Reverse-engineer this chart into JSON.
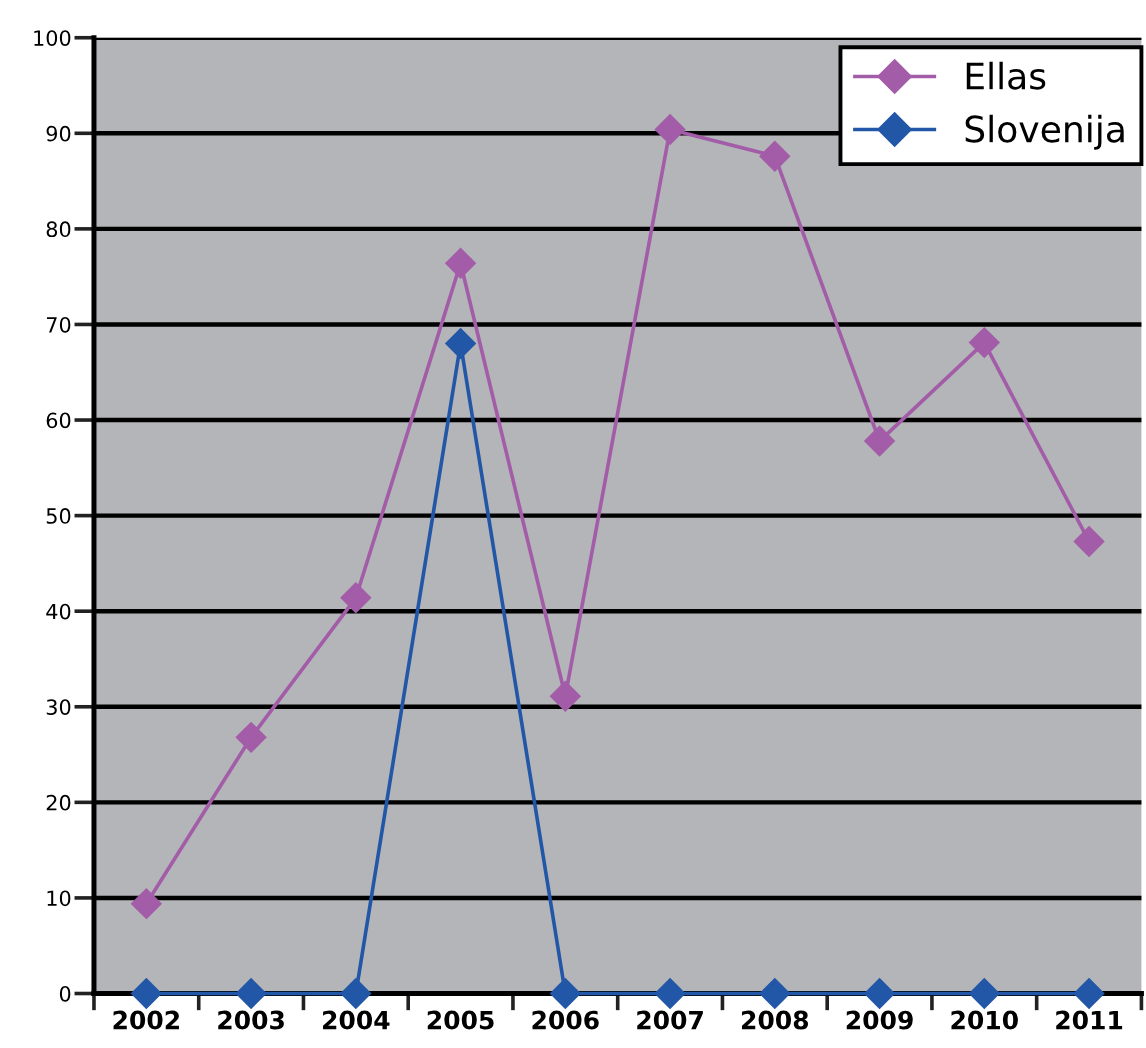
{
  "chart_data": {
    "type": "line",
    "categories": [
      "2002",
      "2003",
      "2004",
      "2005",
      "2006",
      "2007",
      "2008",
      "2009",
      "2010",
      "2011"
    ],
    "series": [
      {
        "name": "Ellas",
        "color": "#a35ca8",
        "values": [
          9.4,
          26.8,
          41.4,
          76.4,
          31.1,
          90.4,
          87.6,
          57.8,
          68.1,
          47.3
        ]
      },
      {
        "name": "Slovenija",
        "color": "#2257a8",
        "values": [
          0,
          0,
          0,
          68,
          0,
          0,
          0,
          0,
          0,
          0
        ]
      }
    ],
    "ylim": [
      0,
      100
    ],
    "yticks": [
      0,
      10,
      20,
      30,
      40,
      50,
      60,
      70,
      80,
      90,
      100
    ],
    "grid": "y",
    "legend": "top right",
    "marker": "diamond",
    "line_style": "solid"
  }
}
